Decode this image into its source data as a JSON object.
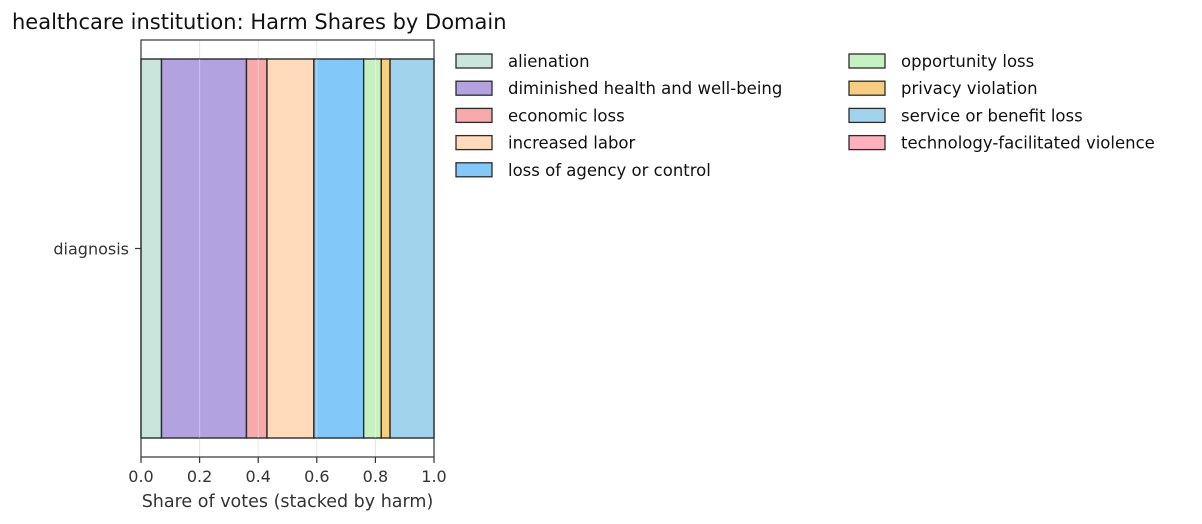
{
  "chart_data": {
    "type": "bar",
    "orientation": "horizontal",
    "stacked": true,
    "title": "healthcare institution: Harm Shares by Domain",
    "xlabel": "Share of votes (stacked by harm)",
    "ylabel": "",
    "categories": [
      "diagnosis"
    ],
    "xlim": [
      0.0,
      1.0
    ],
    "xticks": [
      "0.0",
      "0.2",
      "0.4",
      "0.6",
      "0.8",
      "1.0"
    ],
    "grid": "vertical",
    "legend_position": "outside-right",
    "series": [
      {
        "name": "alienation",
        "values": [
          0.07
        ],
        "color": "#c9e6dc"
      },
      {
        "name": "diminished health and well-being",
        "values": [
          0.29
        ],
        "color": "#b3a2e0"
      },
      {
        "name": "economic loss",
        "values": [
          0.07
        ],
        "color": "#f7aaa9"
      },
      {
        "name": "increased labor",
        "values": [
          0.16
        ],
        "color": "#ffdabb"
      },
      {
        "name": "loss of agency or control",
        "values": [
          0.17
        ],
        "color": "#82c9fa"
      },
      {
        "name": "opportunity loss",
        "values": [
          0.06
        ],
        "color": "#c6f2c2"
      },
      {
        "name": "privacy violation",
        "values": [
          0.03
        ],
        "color": "#f7cd7f"
      },
      {
        "name": "service or benefit loss",
        "values": [
          0.15
        ],
        "color": "#a1d3ec"
      },
      {
        "name": "technology-facilitated violence",
        "values": [
          0.0
        ],
        "color": "#ffb0bd"
      }
    ]
  }
}
